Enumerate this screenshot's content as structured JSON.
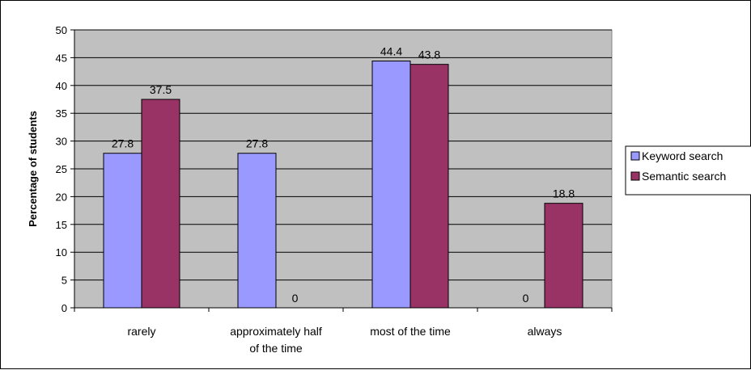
{
  "chart_data": {
    "type": "bar",
    "title": "",
    "xlabel": "",
    "ylabel": "Percentage of students",
    "categories": [
      [
        "rarely"
      ],
      [
        "approximately half",
        "of the time"
      ],
      [
        "most of the time"
      ],
      [
        "always"
      ]
    ],
    "series": [
      {
        "name": "Keyword search",
        "values": [
          27.8,
          27.8,
          44.4,
          0
        ],
        "labels": [
          "27.8",
          "27.8",
          "44.4",
          "0"
        ],
        "color": "#9999ff"
      },
      {
        "name": "Semantic search",
        "values": [
          37.5,
          0,
          43.8,
          18.8
        ],
        "labels": [
          "37.5",
          "0",
          "43.8",
          "18.8"
        ],
        "color": "#993366"
      }
    ],
    "ylim": [
      0,
      50
    ],
    "yticks": [
      0,
      5,
      10,
      15,
      20,
      25,
      30,
      35,
      40,
      45,
      50
    ],
    "grid": true,
    "plot_background": "#c0c0c0",
    "legend_position": "right"
  }
}
